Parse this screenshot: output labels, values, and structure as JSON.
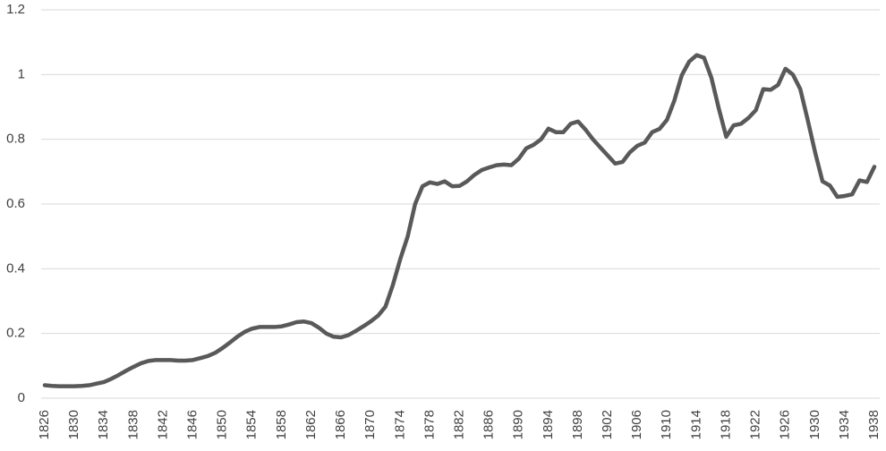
{
  "chart_data": {
    "type": "line",
    "x": [
      1826,
      1827,
      1828,
      1829,
      1830,
      1831,
      1832,
      1833,
      1834,
      1835,
      1836,
      1837,
      1838,
      1839,
      1840,
      1841,
      1842,
      1843,
      1844,
      1845,
      1846,
      1847,
      1848,
      1849,
      1850,
      1851,
      1852,
      1853,
      1854,
      1855,
      1856,
      1857,
      1858,
      1859,
      1860,
      1861,
      1862,
      1863,
      1864,
      1865,
      1866,
      1867,
      1868,
      1869,
      1870,
      1871,
      1872,
      1873,
      1874,
      1875,
      1876,
      1877,
      1878,
      1879,
      1880,
      1881,
      1882,
      1883,
      1884,
      1885,
      1886,
      1887,
      1888,
      1889,
      1890,
      1891,
      1892,
      1893,
      1894,
      1895,
      1896,
      1897,
      1898,
      1899,
      1900,
      1901,
      1902,
      1903,
      1904,
      1905,
      1906,
      1907,
      1908,
      1909,
      1910,
      1911,
      1912,
      1913,
      1914,
      1915,
      1916,
      1917,
      1918,
      1919,
      1920,
      1921,
      1922,
      1923,
      1924,
      1925,
      1926,
      1927,
      1928,
      1929,
      1930,
      1931,
      1932,
      1933,
      1934,
      1935,
      1936,
      1937,
      1938
    ],
    "values": [
      0.04,
      0.038,
      0.037,
      0.037,
      0.037,
      0.038,
      0.04,
      0.045,
      0.05,
      0.06,
      0.072,
      0.085,
      0.097,
      0.108,
      0.115,
      0.118,
      0.118,
      0.118,
      0.116,
      0.116,
      0.118,
      0.124,
      0.13,
      0.14,
      0.155,
      0.172,
      0.19,
      0.205,
      0.215,
      0.22,
      0.22,
      0.22,
      0.222,
      0.228,
      0.235,
      0.237,
      0.232,
      0.218,
      0.2,
      0.19,
      0.188,
      0.195,
      0.208,
      0.222,
      0.237,
      0.255,
      0.283,
      0.35,
      0.43,
      0.5,
      0.6,
      0.655,
      0.667,
      0.662,
      0.67,
      0.655,
      0.656,
      0.67,
      0.69,
      0.705,
      0.713,
      0.72,
      0.722,
      0.72,
      0.74,
      0.772,
      0.783,
      0.8,
      0.833,
      0.822,
      0.822,
      0.848,
      0.855,
      0.83,
      0.8,
      0.775,
      0.75,
      0.725,
      0.73,
      0.76,
      0.78,
      0.79,
      0.822,
      0.832,
      0.86,
      0.92,
      0.998,
      1.04,
      1.06,
      1.052,
      0.99,
      0.895,
      0.808,
      0.843,
      0.848,
      0.866,
      0.89,
      0.955,
      0.953,
      0.968,
      1.018,
      1.0,
      0.955,
      0.86,
      0.76,
      0.67,
      0.657,
      0.622,
      0.625,
      0.63,
      0.673,
      0.668,
      0.715
    ],
    "color": "#595959",
    "xlim": [
      1826,
      1938
    ],
    "xticks": [
      1826,
      1830,
      1834,
      1838,
      1842,
      1846,
      1850,
      1854,
      1858,
      1862,
      1866,
      1870,
      1874,
      1878,
      1882,
      1886,
      1890,
      1894,
      1898,
      1902,
      1906,
      1910,
      1914,
      1918,
      1922,
      1926,
      1930,
      1934,
      1938
    ],
    "ylim": [
      0,
      1.2
    ],
    "yticks": [
      0,
      0.2,
      0.4,
      0.6,
      0.8,
      1,
      1.2
    ],
    "grid": true
  }
}
